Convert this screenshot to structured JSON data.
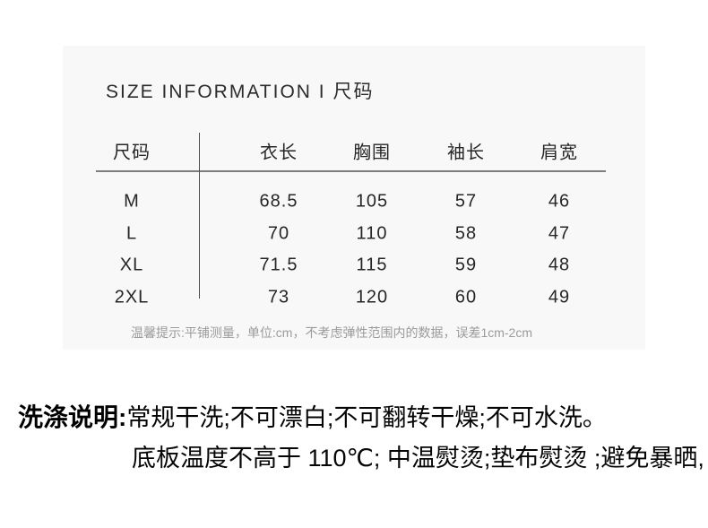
{
  "title": "SIZE INFORMATION I 尺码",
  "size_table": {
    "headers": [
      "尺码",
      "衣长",
      "胸围",
      "袖长",
      "肩宽"
    ],
    "rows": [
      {
        "size": "M",
        "values": [
          "68.5",
          "105",
          "57",
          "46"
        ]
      },
      {
        "size": "L",
        "values": [
          "70",
          "110",
          "58",
          "47"
        ]
      },
      {
        "size": "XL",
        "values": [
          "71.5",
          "115",
          "59",
          "48"
        ]
      },
      {
        "size": "2XL",
        "values": [
          "73",
          "120",
          "60",
          "49"
        ]
      }
    ],
    "note": "温馨提示:平铺测量，单位:cm，不考虑弹性范围内的数据，误差1cm-2cm"
  },
  "care": {
    "label": "洗涤说明:",
    "line1": "常规干洗;不可漂白;不可翻转干燥;不可水洗。",
    "line2": "底板温度不高于 110℃; 中温熨烫;垫布熨烫 ;避免暴晒,"
  },
  "colors": {
    "card_background": "#f8f8f8",
    "table_text": "#262626",
    "note_text": "#9b9b9b",
    "divider_line": "#7e7e7e",
    "care_text": "#000000"
  }
}
